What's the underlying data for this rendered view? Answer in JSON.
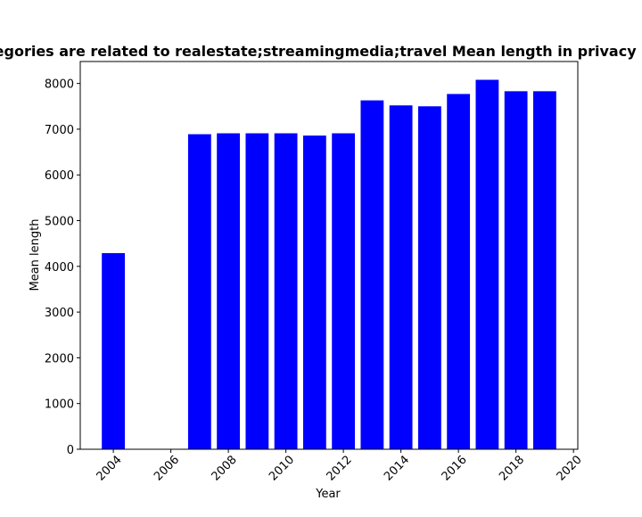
{
  "chart_data": {
    "type": "bar",
    "title": "Categories are related to realestate;streamingmedia;travel Mean length in privacy policy",
    "xlabel": "Year",
    "ylabel": "Mean length",
    "x": [
      2004,
      2007,
      2008,
      2009,
      2010,
      2011,
      2012,
      2013,
      2014,
      2015,
      2016,
      2017,
      2018,
      2019
    ],
    "values": [
      4290,
      6890,
      6910,
      6910,
      6910,
      6860,
      6910,
      7630,
      7520,
      7500,
      7770,
      8080,
      7830,
      7830
    ],
    "xlim": [
      2002.85,
      2020.15
    ],
    "ylim": [
      0,
      8480
    ],
    "xticks": [
      2004,
      2006,
      2008,
      2010,
      2012,
      2014,
      2016,
      2018,
      2020
    ],
    "yticks": [
      0,
      1000,
      2000,
      3000,
      4000,
      5000,
      6000,
      7000,
      8000
    ],
    "bar_width": 0.8,
    "bar_color": "#0000ff",
    "grid": false,
    "legend": "none"
  }
}
